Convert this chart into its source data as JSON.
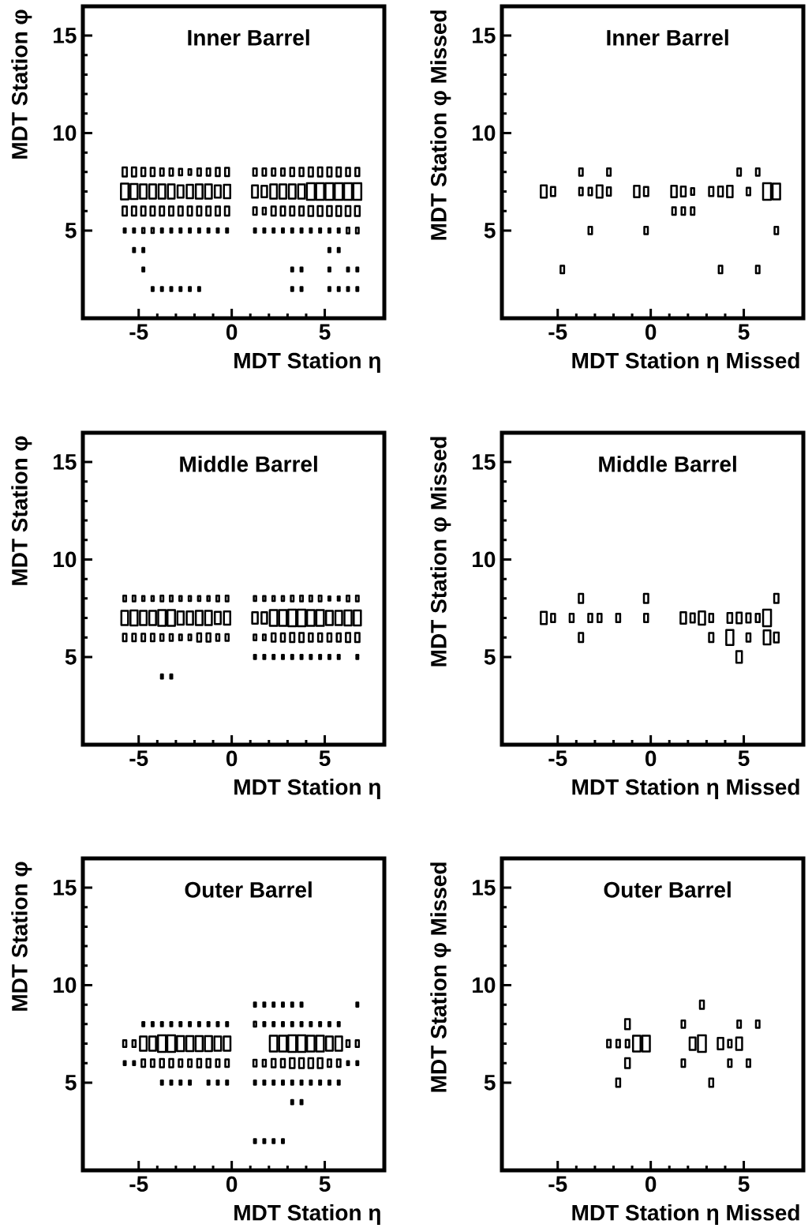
{
  "chart_data": [
    {
      "type": "bubble",
      "title": "Inner Barrel",
      "xlabel": "MDT Station η",
      "ylabel": "MDT Station φ",
      "marker": "square",
      "xlim": [
        -8,
        8.2
      ],
      "ylim": [
        0.5,
        16.5
      ],
      "xticks": [
        -5,
        0,
        5
      ],
      "yticks": [
        5,
        10,
        15
      ],
      "x": [
        -5.75,
        -5.25,
        -4.75,
        -4.25,
        -3.75,
        -3.25,
        -2.75,
        -2.25,
        -1.75,
        -1.25,
        -0.75,
        -0.25,
        1.25,
        1.75,
        2.25,
        2.75,
        3.25,
        3.75,
        4.25,
        4.75,
        5.25,
        5.75,
        6.25,
        6.75,
        -5.75,
        -5.25,
        -4.75,
        -4.25,
        -3.75,
        -3.25,
        -2.75,
        -2.25,
        -1.75,
        -1.25,
        -0.75,
        -0.25,
        1.25,
        1.75,
        2.25,
        2.75,
        3.25,
        3.75,
        4.25,
        4.75,
        5.25,
        5.75,
        6.25,
        6.75,
        -5.75,
        -5.25,
        -4.75,
        -4.25,
        -3.75,
        -3.25,
        -2.75,
        -2.25,
        -1.75,
        -1.25,
        -0.75,
        -0.25,
        1.25,
        1.75,
        2.25,
        2.75,
        3.25,
        3.75,
        4.25,
        4.75,
        5.25,
        5.75,
        6.25,
        6.75,
        -5.75,
        -5.25,
        -4.75,
        -4.25,
        -3.75,
        -3.25,
        -2.75,
        -2.25,
        -1.75,
        -1.25,
        -0.75,
        -0.25,
        1.25,
        1.75,
        2.25,
        2.75,
        3.25,
        3.75,
        4.25,
        4.75,
        5.25,
        5.75,
        6.25,
        6.75,
        -5.25,
        -4.75,
        5.25,
        5.75,
        -4.75,
        3.25,
        3.75,
        5.25,
        6.25,
        6.75,
        -4.25,
        -3.75,
        -3.25,
        -2.75,
        -2.25,
        -1.75,
        3.25,
        3.75,
        5.25,
        5.75,
        6.25,
        6.75
      ],
      "values": [
        8,
        8,
        8,
        8,
        8,
        8,
        8,
        8,
        8,
        8,
        8,
        8,
        8,
        8,
        8,
        8,
        8,
        8,
        8,
        8,
        8,
        8,
        8,
        8,
        7,
        7,
        7,
        7,
        7,
        7,
        7,
        7,
        7,
        7,
        7,
        7,
        7,
        7,
        7,
        7,
        7,
        7,
        7,
        7,
        7,
        7,
        7,
        7,
        6,
        6,
        6,
        6,
        6,
        6,
        6,
        6,
        6,
        6,
        6,
        6,
        6,
        6,
        6,
        6,
        6,
        6,
        6,
        6,
        6,
        6,
        6,
        6,
        5,
        5,
        5,
        5,
        5,
        5,
        5,
        5,
        5,
        5,
        5,
        5,
        5,
        5,
        5,
        5,
        5,
        5,
        5,
        5,
        5,
        5,
        5,
        5,
        4,
        4,
        4,
        4,
        3,
        3,
        3,
        3,
        3,
        3,
        2,
        2,
        2,
        2,
        2,
        2,
        2,
        2,
        2,
        2,
        2,
        2
      ],
      "sizes": [
        0.3,
        0.3,
        0.25,
        0.25,
        0.2,
        0.2,
        0.16,
        0.12,
        0.2,
        0.2,
        0.25,
        0.25,
        0.2,
        0.2,
        0.2,
        0.2,
        0.25,
        0.25,
        0.3,
        0.3,
        0.3,
        0.3,
        0.25,
        0.25,
        0.9,
        0.81,
        0.72,
        0.72,
        0.72,
        0.72,
        0.56,
        0.64,
        0.72,
        0.72,
        0.56,
        0.64,
        0.56,
        0.49,
        0.72,
        0.72,
        0.72,
        0.72,
        1,
        1,
        1,
        1,
        1,
        1,
        0.3,
        0.3,
        0.3,
        0.3,
        0.3,
        0.3,
        0.3,
        0.3,
        0.3,
        0.3,
        0.3,
        0.3,
        0.2,
        0.16,
        0.3,
        0.3,
        0.3,
        0.3,
        0.36,
        0.36,
        0.36,
        0.36,
        0.36,
        0.36,
        0.06,
        0.06,
        0.09,
        0.09,
        0.06,
        0.06,
        0.06,
        0.06,
        0.06,
        0.06,
        0.06,
        0.06,
        0.06,
        0.06,
        0.06,
        0.06,
        0.06,
        0.06,
        0.06,
        0.06,
        0.06,
        0.06,
        0.12,
        0.12,
        0.06,
        0.06,
        0.06,
        0.06,
        0.06,
        0.06,
        0.06,
        0.06,
        0.06,
        0.06,
        0.06,
        0.06,
        0.06,
        0.06,
        0.06,
        0.06,
        0.06,
        0.06,
        0.06,
        0.06,
        0.06,
        0.06
      ]
    },
    {
      "type": "bubble",
      "title": "Inner Barrel",
      "xlabel": "MDT Station η Missed",
      "ylabel": "MDT Station φ Missed",
      "marker": "square",
      "xlim": [
        -8,
        8.2
      ],
      "ylim": [
        0.5,
        16.5
      ],
      "xticks": [
        -5,
        0,
        5
      ],
      "yticks": [
        5,
        10,
        15
      ],
      "x": [
        -3.75,
        -2.25,
        4.75,
        5.75,
        -5.75,
        -5.25,
        -3.75,
        -3.25,
        -2.75,
        -2.25,
        -0.75,
        -0.25,
        1.25,
        1.75,
        2.25,
        3.25,
        3.75,
        4.25,
        5.25,
        6.25,
        6.75,
        1.25,
        1.75,
        2.25,
        -3.25,
        -0.25,
        6.75,
        -4.75,
        3.75,
        5.75
      ],
      "values": [
        8,
        8,
        8,
        8,
        7,
        7,
        7,
        7,
        7,
        7,
        7,
        7,
        7,
        7,
        7,
        7,
        7,
        7,
        7,
        7,
        7,
        6,
        6,
        6,
        5,
        5,
        5,
        3,
        3,
        3
      ],
      "sizes": [
        0.2,
        0.2,
        0.2,
        0.2,
        0.56,
        0.3,
        0.2,
        0.2,
        0.56,
        0.25,
        0.49,
        0.3,
        0.49,
        0.36,
        0.16,
        0.3,
        0.36,
        0.49,
        0.2,
        1,
        0.9,
        0.2,
        0.2,
        0.2,
        0.2,
        0.2,
        0.2,
        0.2,
        0.2,
        0.2
      ]
    },
    {
      "type": "bubble",
      "title": "Middle Barrel",
      "xlabel": "MDT Station η",
      "ylabel": "MDT Station φ",
      "marker": "square",
      "xlim": [
        -8,
        8.2
      ],
      "ylim": [
        0.5,
        16.5
      ],
      "xticks": [
        -5,
        0,
        5
      ],
      "yticks": [
        5,
        10,
        15
      ],
      "x": [
        -5.75,
        -5.25,
        -4.75,
        -4.25,
        -3.75,
        -3.25,
        -2.75,
        -2.25,
        -1.75,
        -1.25,
        -0.75,
        -0.25,
        1.25,
        1.75,
        2.25,
        2.75,
        3.25,
        3.75,
        4.25,
        4.75,
        5.25,
        5.75,
        6.25,
        6.75,
        -5.75,
        -5.25,
        -4.75,
        -4.25,
        -3.75,
        -3.25,
        -2.75,
        -2.25,
        -1.75,
        -1.25,
        -0.75,
        -0.25,
        1.25,
        1.75,
        2.25,
        2.75,
        3.25,
        3.75,
        4.25,
        4.75,
        5.25,
        5.75,
        6.25,
        6.75,
        -5.75,
        -5.25,
        -4.75,
        -4.25,
        -3.75,
        -3.25,
        -2.75,
        -2.25,
        -1.75,
        -1.25,
        -0.75,
        -0.25,
        1.25,
        1.75,
        2.25,
        2.75,
        3.25,
        3.75,
        4.25,
        4.75,
        5.25,
        5.75,
        6.25,
        6.75,
        1.25,
        1.75,
        2.25,
        2.75,
        3.25,
        3.75,
        4.25,
        4.75,
        5.25,
        5.75,
        6.75,
        -3.75,
        -3.25
      ],
      "values": [
        8,
        8,
        8,
        8,
        8,
        8,
        8,
        8,
        8,
        8,
        8,
        8,
        8,
        8,
        8,
        8,
        8,
        8,
        8,
        8,
        8,
        8,
        8,
        8,
        7,
        7,
        7,
        7,
        7,
        7,
        7,
        7,
        7,
        7,
        7,
        7,
        7,
        7,
        7,
        7,
        7,
        7,
        7,
        7,
        7,
        7,
        7,
        7,
        6,
        6,
        6,
        6,
        6,
        6,
        6,
        6,
        6,
        6,
        6,
        6,
        6,
        6,
        6,
        6,
        6,
        6,
        6,
        6,
        6,
        6,
        6,
        6,
        5,
        5,
        5,
        5,
        5,
        5,
        5,
        5,
        5,
        5,
        5,
        4,
        4
      ],
      "sizes": [
        0.12,
        0.12,
        0.09,
        0.09,
        0.12,
        0.12,
        0.09,
        0.09,
        0.09,
        0.09,
        0.12,
        0.12,
        0.09,
        0.09,
        0.09,
        0.09,
        0.12,
        0.12,
        0.12,
        0.12,
        0.06,
        0.06,
        0.12,
        0.12,
        0.72,
        0.81,
        0.72,
        0.72,
        0.9,
        0.9,
        0.64,
        0.64,
        0.72,
        0.72,
        0.56,
        0.64,
        0.49,
        0.49,
        0.9,
        0.9,
        1,
        1,
        0.9,
        0.9,
        0.72,
        0.72,
        0.81,
        0.81,
        0.2,
        0.2,
        0.2,
        0.2,
        0.16,
        0.16,
        0.12,
        0.12,
        0.25,
        0.25,
        0.16,
        0.16,
        0.12,
        0.12,
        0.25,
        0.25,
        0.3,
        0.3,
        0.25,
        0.25,
        0.25,
        0.25,
        0.3,
        0.3,
        0.06,
        0.06,
        0.06,
        0.06,
        0.06,
        0.06,
        0.06,
        0.06,
        0.06,
        0.06,
        0.06,
        0.06,
        0.06
      ]
    },
    {
      "type": "bubble",
      "title": "Middle Barrel",
      "xlabel": "MDT Station η Missed",
      "ylabel": "MDT Station φ Missed",
      "marker": "square",
      "xlim": [
        -8,
        8.2
      ],
      "ylim": [
        0.5,
        16.5
      ],
      "xticks": [
        -5,
        0,
        5
      ],
      "yticks": [
        5,
        10,
        15
      ],
      "x": [
        -3.75,
        -0.25,
        6.75,
        -5.75,
        -5.25,
        -4.25,
        -3.25,
        -2.75,
        -1.75,
        -0.25,
        1.75,
        2.25,
        2.75,
        3.25,
        4.25,
        4.75,
        5.25,
        5.75,
        6.25,
        -3.75,
        3.25,
        4.25,
        5.25,
        6.25,
        6.75,
        4.75
      ],
      "values": [
        8,
        8,
        8,
        7,
        7,
        7,
        7,
        7,
        7,
        7,
        7,
        7,
        7,
        7,
        7,
        7,
        7,
        7,
        7,
        6,
        6,
        6,
        6,
        6,
        6,
        5
      ],
      "sizes": [
        0.3,
        0.3,
        0.3,
        0.56,
        0.25,
        0.25,
        0.25,
        0.25,
        0.25,
        0.25,
        0.49,
        0.3,
        0.64,
        0.25,
        0.36,
        0.42,
        0.3,
        0.25,
        1,
        0.3,
        0.3,
        0.81,
        0.25,
        0.72,
        0.36,
        0.49
      ]
    },
    {
      "type": "bubble",
      "title": "Outer Barrel",
      "xlabel": "MDT Station η",
      "ylabel": "MDT Station φ",
      "marker": "square",
      "xlim": [
        -8,
        8.2
      ],
      "ylim": [
        0.5,
        16.5
      ],
      "xticks": [
        -5,
        0,
        5
      ],
      "yticks": [
        5,
        10,
        15
      ],
      "x": [
        1.25,
        1.75,
        2.25,
        2.75,
        3.25,
        3.75,
        6.75,
        -4.75,
        -4.25,
        -3.75,
        -3.25,
        -2.75,
        -2.25,
        -1.75,
        -1.25,
        -0.75,
        -0.25,
        1.25,
        1.75,
        2.25,
        2.75,
        3.25,
        3.75,
        4.25,
        4.75,
        5.25,
        5.75,
        -5.75,
        -5.25,
        -4.75,
        -4.25,
        -3.75,
        -3.25,
        -2.75,
        -2.25,
        -1.75,
        -1.25,
        -0.75,
        -0.25,
        2.25,
        2.75,
        3.25,
        3.75,
        4.25,
        4.75,
        5.25,
        5.75,
        6.25,
        6.75,
        -5.75,
        -5.25,
        -4.75,
        -4.25,
        -3.75,
        -3.25,
        -2.75,
        -2.25,
        -1.75,
        -1.25,
        -0.75,
        -0.25,
        1.25,
        1.75,
        2.25,
        2.75,
        3.25,
        3.75,
        4.25,
        4.75,
        5.25,
        5.75,
        6.25,
        6.75,
        -3.75,
        -3.25,
        -2.75,
        -2.25,
        -1.25,
        -0.75,
        -0.25,
        1.25,
        1.75,
        2.25,
        2.75,
        3.25,
        3.75,
        4.25,
        4.75,
        5.25,
        5.75,
        3.25,
        3.75,
        1.25,
        1.75,
        2.25,
        2.75
      ],
      "values": [
        9,
        9,
        9,
        9,
        9,
        9,
        9,
        8,
        8,
        8,
        8,
        8,
        8,
        8,
        8,
        8,
        8,
        8,
        8,
        8,
        8,
        8,
        8,
        8,
        8,
        8,
        8,
        7,
        7,
        7,
        7,
        7,
        7,
        7,
        7,
        7,
        7,
        7,
        7,
        7,
        7,
        7,
        7,
        7,
        7,
        7,
        7,
        7,
        7,
        6,
        6,
        6,
        6,
        6,
        6,
        6,
        6,
        6,
        6,
        6,
        6,
        6,
        6,
        6,
        6,
        6,
        6,
        6,
        6,
        6,
        6,
        6,
        6,
        5,
        5,
        5,
        5,
        5,
        5,
        5,
        5,
        5,
        5,
        5,
        5,
        5,
        5,
        5,
        5,
        5,
        4,
        4,
        2,
        2,
        2,
        2
      ],
      "sizes": [
        0.06,
        0.06,
        0.06,
        0.06,
        0.06,
        0.06,
        0.06,
        0.06,
        0.06,
        0.06,
        0.06,
        0.06,
        0.06,
        0.06,
        0.06,
        0.06,
        0.06,
        0.09,
        0.06,
        0.06,
        0.06,
        0.06,
        0.06,
        0.06,
        0.06,
        0.06,
        0.06,
        0.16,
        0.16,
        0.72,
        0.72,
        1,
        1,
        0.81,
        0.81,
        0.81,
        0.81,
        0.72,
        0.72,
        0.9,
        0.9,
        1,
        1,
        0.9,
        0.9,
        0.72,
        0.72,
        0.16,
        0.16,
        0.06,
        0.06,
        0.2,
        0.2,
        0.25,
        0.25,
        0.2,
        0.2,
        0.25,
        0.25,
        0.2,
        0.2,
        0.16,
        0.16,
        0.25,
        0.25,
        0.36,
        0.36,
        0.36,
        0.36,
        0.2,
        0.2,
        0.06,
        0.06,
        0.06,
        0.06,
        0.06,
        0.06,
        0.06,
        0.06,
        0.06,
        0.06,
        0.06,
        0.06,
        0.06,
        0.06,
        0.06,
        0.06,
        0.06,
        0.06,
        0.06,
        0.06,
        0.06,
        0.06,
        0.06,
        0.06,
        0.06
      ]
    },
    {
      "type": "bubble",
      "title": "Outer Barrel",
      "xlabel": "MDT Station η Missed",
      "ylabel": "MDT Station φ Missed",
      "marker": "square",
      "xlim": [
        -8,
        8.2
      ],
      "ylim": [
        0.5,
        16.5
      ],
      "xticks": [
        -5,
        0,
        5
      ],
      "yticks": [
        5,
        10,
        15
      ],
      "x": [
        2.75,
        -1.25,
        1.75,
        4.75,
        5.75,
        -2.25,
        -1.75,
        -1.25,
        -0.75,
        -0.25,
        2.25,
        2.75,
        3.75,
        4.25,
        4.75,
        -1.25,
        1.75,
        4.25,
        5.25,
        -1.75,
        3.25
      ],
      "values": [
        9,
        8,
        8,
        8,
        8,
        7,
        7,
        7,
        7,
        7,
        7,
        7,
        7,
        7,
        7,
        6,
        6,
        6,
        6,
        5,
        5
      ],
      "sizes": [
        0.25,
        0.36,
        0.2,
        0.2,
        0.2,
        0.2,
        0.2,
        0.2,
        0.9,
        0.9,
        0.56,
        1,
        0.49,
        0.2,
        0.56,
        0.36,
        0.2,
        0.2,
        0.2,
        0.25,
        0.25
      ]
    }
  ]
}
